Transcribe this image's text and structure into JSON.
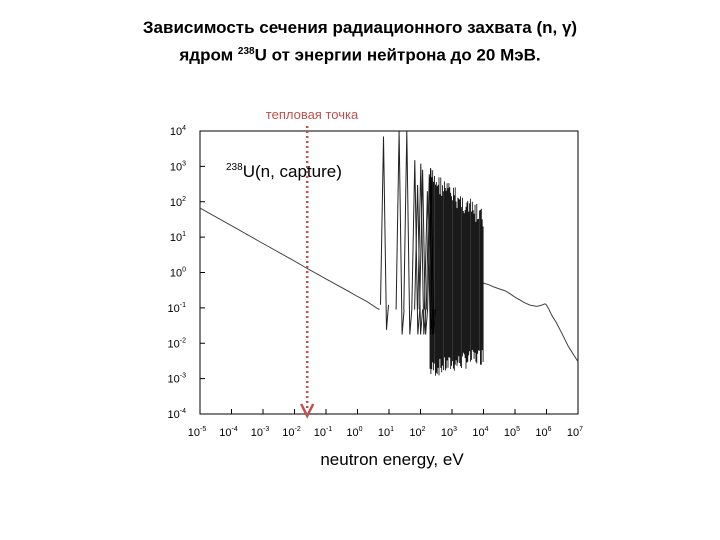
{
  "title": {
    "line1": "Зависимость сечения радиационного захвата (n, γ)",
    "line2_prefix": "ядром ",
    "line2_isotope_mass": "238",
    "line2_isotope": "U",
    "line2_suffix": " от энергии нейтрона до 20 МэВ."
  },
  "annotation": {
    "text": "тепловая точка",
    "x_eV": 0.0253,
    "color": "#c0504d"
  },
  "chart_data": {
    "type": "line",
    "xscale": "log",
    "yscale": "log",
    "xlabel": "neutron energy, eV",
    "ylabel": "",
    "xlim": [
      1e-05,
      10000000
    ],
    "ylim": [
      0.0001,
      10000
    ],
    "x_ticks": [
      {
        "base": "10",
        "exp": "-5",
        "value": 1e-05
      },
      {
        "base": "10",
        "exp": "-4",
        "value": 0.0001
      },
      {
        "base": "10",
        "exp": "-3",
        "value": 0.001
      },
      {
        "base": "10",
        "exp": "-2",
        "value": 0.01
      },
      {
        "base": "10",
        "exp": "-1",
        "value": 0.1
      },
      {
        "base": "10",
        "exp": "0",
        "value": 1
      },
      {
        "base": "10",
        "exp": "1",
        "value": 10
      },
      {
        "base": "10",
        "exp": "2",
        "value": 100
      },
      {
        "base": "10",
        "exp": "3",
        "value": 1000
      },
      {
        "base": "10",
        "exp": "4",
        "value": 10000
      },
      {
        "base": "10",
        "exp": "5",
        "value": 100000
      },
      {
        "base": "10",
        "exp": "6",
        "value": 1000000
      },
      {
        "base": "10",
        "exp": "7",
        "value": 10000000
      }
    ],
    "y_ticks": [
      {
        "base": "10",
        "exp": "4",
        "value": 10000
      },
      {
        "base": "10",
        "exp": "3",
        "value": 1000
      },
      {
        "base": "10",
        "exp": "2",
        "value": 100
      },
      {
        "base": "10",
        "exp": "1",
        "value": 10
      },
      {
        "base": "10",
        "exp": "0",
        "value": 1
      },
      {
        "base": "10",
        "exp": "-1",
        "value": 0.1
      },
      {
        "base": "10",
        "exp": "-2",
        "value": 0.01
      },
      {
        "base": "10",
        "exp": "-3",
        "value": 0.001
      },
      {
        "base": "10",
        "exp": "-4",
        "value": 0.0001
      }
    ],
    "inner_label": {
      "mass": "238",
      "text": "U(n, capture)"
    },
    "series": [
      {
        "x": [
          1e-05,
          0.0001,
          0.001,
          0.01,
          0.0253,
          0.1,
          0.5,
          1,
          2,
          4,
          5
        ],
        "y": [
          66,
          21,
          6.6,
          2.1,
          1.3,
          0.66,
          0.3,
          0.21,
          0.15,
          0.1,
          0.09
        ]
      },
      {
        "x": [
          10000,
          15000,
          20000,
          30000,
          50000,
          70000,
          100000,
          200000,
          300000,
          500000,
          700000,
          900000,
          1000000,
          1200000,
          1500000,
          2000000,
          3000000,
          5000000,
          10000000
        ],
        "y": [
          0.5,
          0.45,
          0.4,
          0.35,
          0.3,
          0.25,
          0.2,
          0.14,
          0.12,
          0.11,
          0.12,
          0.13,
          0.12,
          0.09,
          0.06,
          0.04,
          0.02,
          0.008,
          0.003
        ]
      }
    ],
    "resonances": [
      {
        "x": 6.67,
        "y": 7000
      },
      {
        "x": 20.9,
        "y": 10000
      },
      {
        "x": 36.7,
        "y": 10000
      },
      {
        "x": 66.0,
        "y": 1500
      },
      {
        "x": 80.7,
        "y": 300
      },
      {
        "x": 102.5,
        "y": 1200
      },
      {
        "x": 116.9,
        "y": 800
      },
      {
        "x": 165.3,
        "y": 200
      },
      {
        "x": 189.7,
        "y": 600
      },
      {
        "x": 208.5,
        "y": 900
      }
    ],
    "dense_resonance_region": {
      "x_start": 200,
      "x_end": 10000,
      "y_max": 1000,
      "y_min": 0.001
    }
  }
}
